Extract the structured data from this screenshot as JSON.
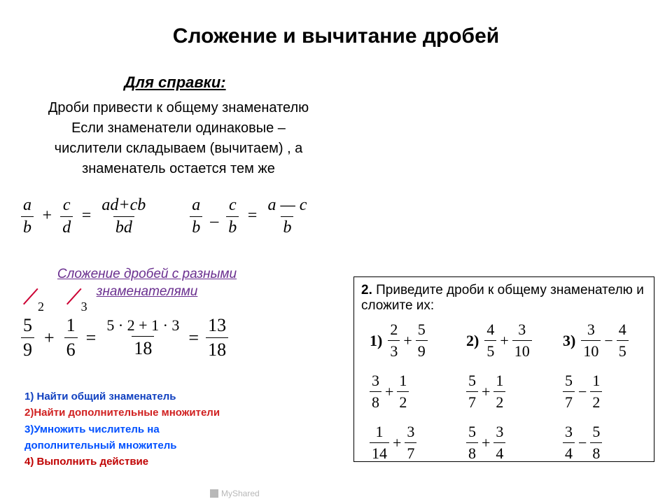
{
  "title": "Сложение и вычитание дробей",
  "ref": {
    "head": "Для справки:",
    "l1": "Дроби привести к общему знаменателю",
    "l2": "Если знаменатели одинаковые –",
    "l3": "числители складываем (вычитаем) , а",
    "l4": "знаменатель остается тем же"
  },
  "formulas": {
    "add": {
      "f1n": "a",
      "f1d": "b",
      "op1": "+",
      "f2n": "c",
      "f2d": "d",
      "eq": "=",
      "f3n": "ad+cb",
      "f3d": "bd"
    },
    "sub": {
      "f1n": "a",
      "f1d": "b",
      "op1": "_",
      "f2n": "c",
      "f2d": "b",
      "eq": "=",
      "f3n": "a — c",
      "f3d": "b"
    }
  },
  "section_head": "Сложение дробей с разными знаменателями",
  "worked": {
    "f1n": "5",
    "f1d": "9",
    "m1": "2",
    "op": "+",
    "f2n": "1",
    "f2d": "6",
    "m2": "3",
    "eq": "=",
    "midn": "5 · 2 + 1 · 3",
    "midd": "18",
    "eq2": "=",
    "rn": "13",
    "rd": "18"
  },
  "steps": {
    "s1": "1) Найти общий знаменатель",
    "s2": "2)Найти дополнительные множители",
    "s3": "3)Умножить числитель на",
    "s3b": "дополнительный множитель",
    "s4": "4) Выполнить действие"
  },
  "task": {
    "head_b": "2.",
    "head": " Приведите дроби к общему знаменателю и сложите их:",
    "r1": [
      {
        "lbl": "1)",
        "an": "2",
        "ad": "3",
        "op": "+",
        "bn": "5",
        "bd": "9"
      },
      {
        "lbl": "2)",
        "an": "4",
        "ad": "5",
        "op": "+",
        "bn": "3",
        "bd": "10"
      },
      {
        "lbl": "3)",
        "an": "3",
        "ad": "10",
        "op": "−",
        "bn": "4",
        "bd": "5"
      }
    ],
    "r2": [
      {
        "an": "3",
        "ad": "8",
        "op": "+",
        "bn": "1",
        "bd": "2"
      },
      {
        "an": "5",
        "ad": "7",
        "op": "+",
        "bn": "1",
        "bd": "2"
      },
      {
        "an": "5",
        "ad": "7",
        "op": "−",
        "bn": "1",
        "bd": "2"
      }
    ],
    "r3": [
      {
        "an": "1",
        "ad": "14",
        "op": "+",
        "bn": "3",
        "bd": "7"
      },
      {
        "an": "5",
        "ad": "8",
        "op": "+",
        "bn": "3",
        "bd": "4"
      },
      {
        "an": "3",
        "ad": "4",
        "op": "−",
        "bn": "5",
        "bd": "8"
      }
    ]
  },
  "watermark": "MyShared"
}
